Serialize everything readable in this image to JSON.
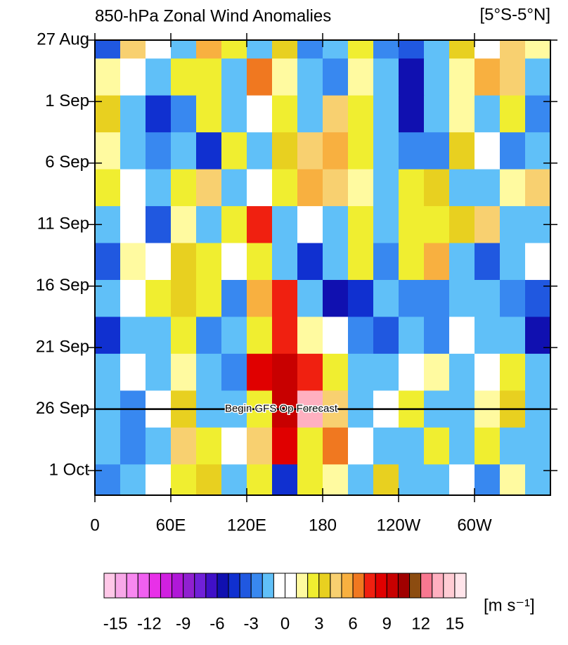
{
  "chart_data": {
    "type": "hovmoller",
    "title": "850-hPa Zonal Wind Anomalies",
    "region": "[5°S-5°N]",
    "units": "[m s⁻¹]",
    "annotation": "Begin GFS Op Forecast",
    "forecast_start": 30,
    "xlim": [
      0,
      360
    ],
    "xticks": [
      0,
      {
        "value": 60,
        "label": "60E"
      },
      {
        "value": 120,
        "label": "120E"
      },
      180,
      {
        "value": 240,
        "label": "120W"
      },
      {
        "value": 300,
        "label": "60W"
      }
    ],
    "ylim": [
      0,
      37
    ],
    "yticks": [
      {
        "value": 0,
        "label": "27 Aug"
      },
      {
        "value": 5,
        "label": "1 Sep"
      },
      {
        "value": 10,
        "label": "6 Sep"
      },
      {
        "value": 15,
        "label": "11 Sep"
      },
      {
        "value": 20,
        "label": "16 Sep"
      },
      {
        "value": 25,
        "label": "21 Sep"
      },
      {
        "value": 30,
        "label": "26 Sep"
      },
      {
        "value": 35,
        "label": "1 Oct"
      }
    ],
    "lon": [
      10,
      30,
      50,
      70,
      90,
      110,
      130,
      150,
      170,
      190,
      210,
      230,
      250,
      270,
      290,
      310,
      330,
      350
    ],
    "time": [
      0,
      3,
      6,
      9,
      12,
      15,
      18,
      21,
      24,
      27,
      30,
      33,
      36
    ],
    "field": [
      [
        -4,
        4,
        0,
        -2,
        5,
        2,
        -2,
        3,
        -3,
        -2,
        2,
        -3,
        -4,
        -2,
        3,
        -1,
        4,
        1
      ],
      [
        1,
        0,
        -2,
        2,
        2,
        -2,
        6,
        1,
        -2,
        -3,
        1,
        -2,
        -6,
        -2,
        1,
        5,
        4,
        -2
      ],
      [
        3,
        -2,
        -5,
        -3,
        2,
        -2,
        0,
        2,
        -2,
        4,
        2,
        -2,
        -6,
        -2,
        1,
        -2,
        2,
        -3
      ],
      [
        1,
        -2,
        -3,
        -2,
        -5,
        2,
        -2,
        3,
        4,
        5,
        2,
        -2,
        -3,
        -3,
        3,
        0,
        -3,
        -2
      ],
      [
        2,
        0,
        -2,
        2,
        4,
        -2,
        0,
        2,
        5,
        4,
        1,
        -2,
        2,
        3,
        -2,
        -2,
        1,
        4
      ],
      [
        -2,
        0,
        -4,
        1,
        -2,
        2,
        7,
        -2,
        0,
        -2,
        2,
        -2,
        2,
        2,
        3,
        4,
        -2,
        -2
      ],
      [
        -4,
        1,
        0,
        3,
        2,
        0,
        2,
        -2,
        -5,
        -2,
        2,
        -3,
        2,
        5,
        -2,
        -4,
        -2,
        0
      ],
      [
        -2,
        0,
        2,
        3,
        2,
        -3,
        5,
        7,
        -2,
        -6,
        -5,
        -2,
        -3,
        -3,
        -2,
        -2,
        -3,
        -4
      ],
      [
        -5,
        -2,
        -2,
        2,
        -3,
        -2,
        2,
        7,
        1,
        0,
        -3,
        -4,
        -2,
        -3,
        0,
        -2,
        -2,
        -6
      ],
      [
        -2,
        0,
        -2,
        1,
        -2,
        -3,
        8,
        9,
        7,
        2,
        -2,
        -2,
        0,
        1,
        -2,
        0,
        2,
        -2
      ],
      [
        -2,
        -3,
        0,
        3,
        -2,
        -2,
        2,
        9,
        13,
        4,
        -2,
        0,
        2,
        -2,
        -2,
        1,
        3,
        -2
      ],
      [
        -2,
        -3,
        -2,
        4,
        2,
        0,
        4,
        8,
        2,
        6,
        0,
        -2,
        -2,
        2,
        -2,
        2,
        -2,
        -2
      ],
      [
        -3,
        -2,
        0,
        2,
        3,
        -2,
        2,
        -5,
        2,
        1,
        -2,
        3,
        -2,
        -2,
        0,
        -3,
        1,
        -2
      ]
    ],
    "levels": [
      -15,
      -14,
      -13,
      -12,
      -11,
      -10,
      -9,
      -8,
      -7,
      -6,
      -5,
      -4,
      -3,
      -2,
      -1,
      0,
      1,
      2,
      3,
      4,
      5,
      6,
      7,
      8,
      9,
      10,
      11,
      12,
      13,
      14,
      15
    ],
    "colors": [
      "#ffc8e8",
      "#f8a8e8",
      "#f888f0",
      "#f060f0",
      "#e830e8",
      "#d020e0",
      "#b018d8",
      "#9020d0",
      "#7020d8",
      "#4010c8",
      "#1010b0",
      "#1030d0",
      "#2058e0",
      "#3888f0",
      "#60c0f8",
      "#ffffff",
      "#ffffff",
      "#fffaa0",
      "#f0ee30",
      "#e8d020",
      "#f8d070",
      "#f8b040",
      "#f07820",
      "#f02010",
      "#e00000",
      "#c80000",
      "#a00000",
      "#8c4c10",
      "#f87890",
      "#ffb0c0",
      "#ffccd4",
      "#ffe4ea"
    ],
    "colorbar_ticks": [
      -15,
      -12,
      -9,
      -6,
      -3,
      0,
      3,
      6,
      9,
      12,
      15
    ]
  }
}
